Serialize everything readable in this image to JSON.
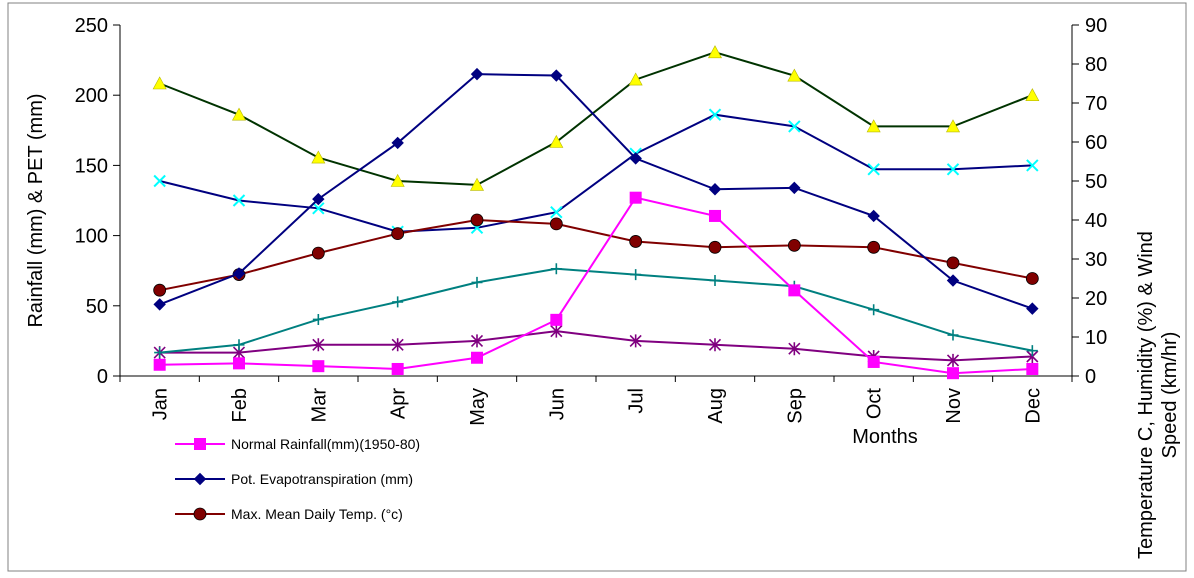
{
  "chart_data": {
    "type": "line",
    "categories": [
      "Jan",
      "Feb",
      "Mar",
      "Apr",
      "May",
      "Jun",
      "Jul",
      "Aug",
      "Sep",
      "Oct",
      "Nov",
      "Dec"
    ],
    "xlabel": "Months",
    "ylabel_left": "Rainfall (mm) & PET (mm)",
    "ylabel_right_line1": "Temperature C, Humidity (%) & Wind",
    "ylabel_right_line2": "Speed (km/hr)",
    "ylim_left": [
      0,
      250
    ],
    "yticks_left": [
      0,
      50,
      100,
      150,
      200,
      250
    ],
    "ylim_right": [
      0,
      90
    ],
    "yticks_right": [
      0,
      10,
      20,
      30,
      40,
      50,
      60,
      70,
      80,
      90
    ],
    "grid": false,
    "legend_position": "bottom-left",
    "series": [
      {
        "name": "Normal Rainfall(mm)(1950-80)",
        "axis": "left",
        "color": "#ff00ff",
        "marker": "square",
        "in_legend": true,
        "values": [
          8,
          9,
          7,
          5,
          13,
          40,
          127,
          114,
          61,
          10,
          2,
          5
        ]
      },
      {
        "name": "Pot. Evapotranspiration (mm)",
        "axis": "left",
        "color": "#000080",
        "marker": "diamond",
        "in_legend": true,
        "values": [
          51,
          73,
          126,
          166,
          215,
          214,
          155,
          133,
          134,
          114,
          68,
          48
        ]
      },
      {
        "name": "Max. Mean Daily Temp. (°c)",
        "axis": "right",
        "color": "#800000",
        "marker": "circle",
        "in_legend": true,
        "values": [
          22,
          26,
          31.5,
          36.5,
          40,
          39,
          34.5,
          33,
          33.5,
          33,
          29,
          25
        ]
      },
      {
        "name": "",
        "axis": "right",
        "color": "#003300",
        "marker": "triangle",
        "marker_color": "#ffff00",
        "in_legend": false,
        "values": [
          75,
          67,
          56,
          50,
          49,
          60,
          76,
          83,
          77,
          64,
          64,
          72
        ]
      },
      {
        "name": "",
        "axis": "right",
        "color": "#000080",
        "marker": "x",
        "marker_color": "#00ffff",
        "in_legend": false,
        "values": [
          50,
          45,
          43,
          37,
          38,
          42,
          57,
          67,
          64,
          53,
          53,
          54
        ]
      },
      {
        "name": "",
        "axis": "right",
        "color": "#008080",
        "marker": "plus",
        "in_legend": false,
        "values": [
          6,
          8,
          14.5,
          19,
          24,
          27.5,
          26,
          24.5,
          23,
          17,
          10.5,
          6.5
        ]
      },
      {
        "name": "",
        "axis": "right",
        "color": "#800080",
        "marker": "star",
        "in_legend": false,
        "values": [
          6,
          6,
          8,
          8,
          9,
          11.5,
          9,
          8,
          7,
          5,
          4,
          5
        ]
      }
    ]
  }
}
